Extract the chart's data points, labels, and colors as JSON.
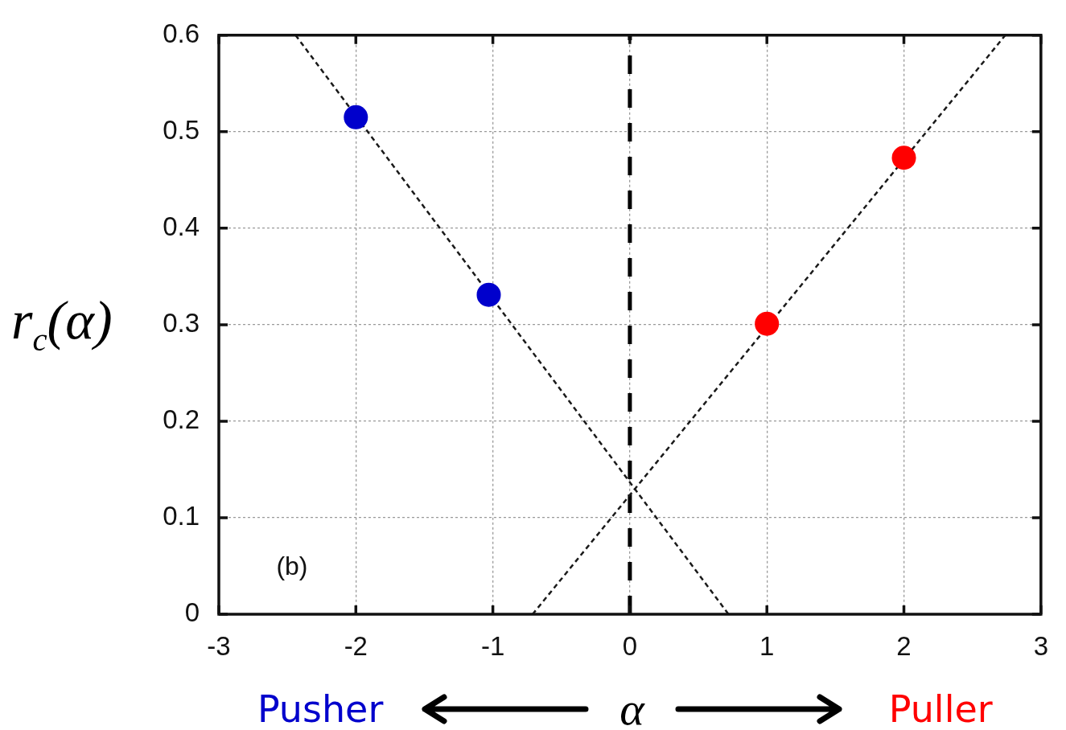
{
  "chart_data": {
    "type": "scatter",
    "xlabel": "α",
    "ylabel": "r$_{c}$(α)",
    "annotations": [
      "(b)"
    ],
    "series": [
      {
        "name": "Pusher",
        "color": "#0000cc",
        "x": [
          -2,
          -1.03
        ],
        "values": [
          0.515,
          0.331
        ]
      },
      {
        "name": "Puller",
        "color": "#ff0000",
        "x": [
          1,
          2
        ],
        "values": [
          0.301,
          0.473
        ]
      },
      {
        "type": "line",
        "color": "#1a1a1a",
        "x": [
          -2.44,
          0.72
        ],
        "values": [
          0.6,
          0
        ],
        "marker": "none"
      },
      {
        "type": "line",
        "color": "#1a1a1a",
        "x": [
          -0.71,
          2.74
        ],
        "values": [
          0,
          0.6
        ],
        "marker": "none"
      }
    ],
    "ref_lines": [
      {
        "axis": "x",
        "value": 0,
        "color": "#000000",
        "line_style": "dashed"
      }
    ],
    "xlim": [
      -3,
      3
    ],
    "ylim": [
      0,
      0.6
    ],
    "xticks": [
      -3,
      -2,
      -1,
      0,
      1,
      2,
      3
    ],
    "yticks": [
      0,
      0.1,
      0.2,
      0.3,
      0.4,
      0.5,
      0.6
    ],
    "grid": true,
    "legend": "bottom",
    "marker": "circle",
    "line_style": "dashed"
  }
}
